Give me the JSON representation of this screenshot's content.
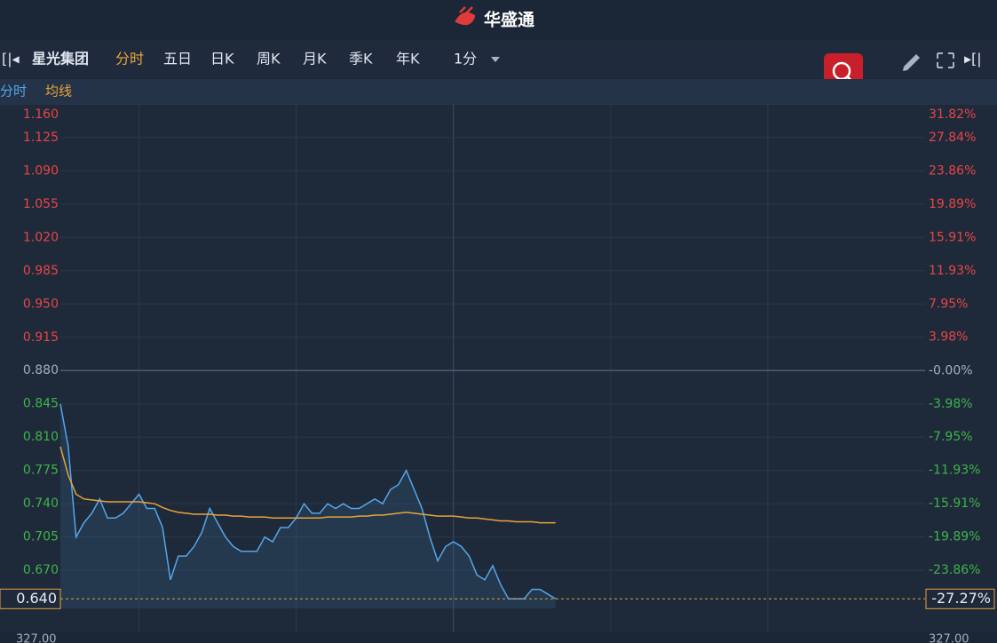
{
  "header": {
    "logo": "华盛通"
  },
  "toolbar": {
    "stock": "星光集团",
    "tabs": [
      "分时",
      "五日",
      "日K",
      "周K",
      "月K",
      "季K",
      "年K"
    ],
    "interval": "1分"
  },
  "chart_data": {
    "type": "line",
    "x": [
      0,
      3,
      6,
      9,
      12,
      15,
      18,
      21,
      24,
      27,
      30,
      33,
      36,
      39,
      42,
      45,
      48,
      51,
      54,
      57,
      60,
      63,
      66,
      69,
      72,
      75,
      78,
      81,
      84,
      87,
      90,
      93,
      96,
      99,
      102,
      105,
      108,
      111,
      114,
      117,
      120,
      123,
      126,
      129,
      132,
      135,
      138,
      141,
      144,
      147,
      150,
      153,
      156,
      159,
      162,
      165,
      168,
      171,
      174,
      177,
      180,
      183,
      186,
      189
    ],
    "series": [
      {
        "name": "分时",
        "color": "#55a6ea",
        "values": [
          0.845,
          0.8,
          0.705,
          0.72,
          0.73,
          0.745,
          0.725,
          0.725,
          0.73,
          0.74,
          0.75,
          0.735,
          0.735,
          0.715,
          0.66,
          0.685,
          0.685,
          0.695,
          0.71,
          0.735,
          0.72,
          0.705,
          0.695,
          0.69,
          0.69,
          0.69,
          0.705,
          0.7,
          0.715,
          0.715,
          0.725,
          0.74,
          0.73,
          0.73,
          0.74,
          0.735,
          0.74,
          0.735,
          0.735,
          0.74,
          0.745,
          0.74,
          0.755,
          0.76,
          0.775,
          0.755,
          0.735,
          0.705,
          0.68,
          0.695,
          0.7,
          0.695,
          0.685,
          0.665,
          0.66,
          0.675,
          0.655,
          0.64,
          0.64,
          0.64,
          0.65,
          0.65,
          0.645,
          0.64
        ]
      },
      {
        "name": "均线",
        "color": "#e8a33a",
        "values": [
          0.8,
          0.77,
          0.75,
          0.745,
          0.744,
          0.743,
          0.742,
          0.742,
          0.742,
          0.742,
          0.742,
          0.741,
          0.74,
          0.736,
          0.733,
          0.731,
          0.73,
          0.729,
          0.729,
          0.729,
          0.728,
          0.728,
          0.727,
          0.727,
          0.726,
          0.726,
          0.726,
          0.725,
          0.725,
          0.725,
          0.725,
          0.725,
          0.725,
          0.725,
          0.726,
          0.726,
          0.726,
          0.726,
          0.727,
          0.727,
          0.728,
          0.728,
          0.729,
          0.73,
          0.731,
          0.73,
          0.729,
          0.728,
          0.727,
          0.727,
          0.727,
          0.726,
          0.725,
          0.725,
          0.724,
          0.723,
          0.722,
          0.722,
          0.721,
          0.721,
          0.721,
          0.72,
          0.72,
          0.72
        ]
      }
    ],
    "xlim": [
      0,
      330
    ],
    "xticks": [
      30,
      90,
      150,
      210,
      270
    ],
    "ylim": [
      0.63,
      1.165
    ],
    "yticks": [
      {
        "value": 1.16,
        "label": "1.160"
      },
      {
        "value": 1.125,
        "label": "1.125"
      },
      {
        "value": 1.09,
        "label": "1.090"
      },
      {
        "value": 1.055,
        "label": "1.055"
      },
      {
        "value": 1.02,
        "label": "1.020"
      },
      {
        "value": 0.985,
        "label": "0.985"
      },
      {
        "value": 0.95,
        "label": "0.950"
      },
      {
        "value": 0.915,
        "label": "0.915"
      },
      {
        "value": 0.88,
        "label": "0.880"
      },
      {
        "value": 0.845,
        "label": "0.845"
      },
      {
        "value": 0.81,
        "label": "0.810"
      },
      {
        "value": 0.775,
        "label": "0.775"
      },
      {
        "value": 0.74,
        "label": "0.740"
      },
      {
        "value": 0.705,
        "label": "0.705"
      },
      {
        "value": 0.67,
        "label": "0.670"
      }
    ],
    "y2lim": [
      -28.41,
      32.39
    ],
    "y2ticks": [
      {
        "value": 31.82,
        "label": "31.82%"
      },
      {
        "value": 27.84,
        "label": "27.84%"
      },
      {
        "value": 23.86,
        "label": "23.86%"
      },
      {
        "value": 19.89,
        "label": "19.89%"
      },
      {
        "value": 15.91,
        "label": "15.91%"
      },
      {
        "value": 11.93,
        "label": "11.93%"
      },
      {
        "value": 7.95,
        "label": "7.95%"
      },
      {
        "value": 3.98,
        "label": "3.98%"
      },
      {
        "value": 0,
        "label": "-0.00%"
      },
      {
        "value": -3.98,
        "label": "-3.98%"
      },
      {
        "value": -7.95,
        "label": "-7.95%"
      },
      {
        "value": -11.93,
        "label": "-11.93%"
      },
      {
        "value": -15.91,
        "label": "-15.91%"
      },
      {
        "value": -19.89,
        "label": "-19.89%"
      },
      {
        "value": -23.86,
        "label": "-23.86%"
      }
    ],
    "last_price": {
      "value": 0.64,
      "label": "0.640"
    },
    "last_change": {
      "value": -27.27,
      "label": "-27.27%"
    },
    "up_color": "#e84545",
    "down_color": "#3db44a",
    "flat_color": "#a5afbd",
    "grid": true
  },
  "volume": {
    "left_label": "327.00",
    "right_label": "327.00"
  }
}
